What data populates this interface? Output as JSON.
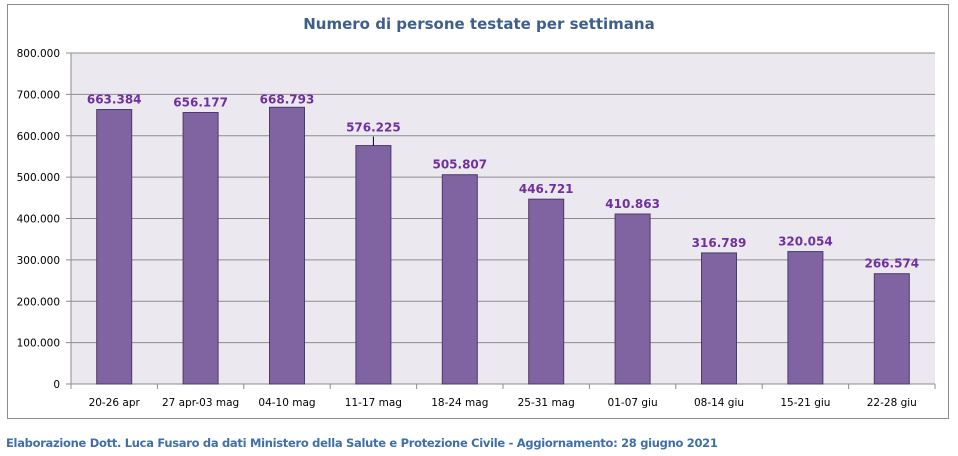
{
  "chart_data": {
    "type": "bar",
    "title": "Numero di persone testate per settimana",
    "xlabel": "",
    "ylabel": "",
    "ylim": [
      0,
      800000
    ],
    "yticks": [
      0,
      100000,
      200000,
      300000,
      400000,
      500000,
      600000,
      700000,
      800000
    ],
    "ytick_labels": [
      "0",
      "100.000",
      "200.000",
      "300.000",
      "400.000",
      "500.000",
      "600.000",
      "700.000",
      "800.000"
    ],
    "grid": true,
    "legend": "none",
    "categories": [
      "20-26 apr",
      "27 apr-03 mag",
      "04-10 mag",
      "11-17 mag",
      "18-24 mag",
      "25-31 mag",
      "01-07 giu",
      "08-14 giu",
      "15-21 giu",
      "22-28 giu"
    ],
    "values": [
      663384,
      656177,
      668793,
      576225,
      505807,
      446721,
      410863,
      316789,
      320054,
      266574
    ],
    "value_labels": [
      "663.384",
      "656.177",
      "668.793",
      "576.225",
      "505.807",
      "446.721",
      "410.863",
      "316.789",
      "320.054",
      "266.574"
    ],
    "colors": {
      "bar": "#8064a2",
      "bar_edge": "#4b3a6b",
      "label": "#7030a0",
      "plot_bg": "#ebe9ef",
      "grid": "#8c8c8c",
      "title": "#3f5f8a"
    }
  },
  "footer": {
    "text": "Elaborazione Dott. Luca Fusaro da dati Ministero della Salute e Protezione Civile - Aggiornamento: 28 giugno 2021"
  }
}
